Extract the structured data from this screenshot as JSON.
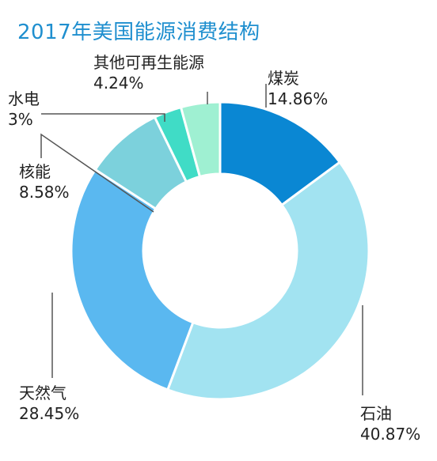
{
  "chart_data": {
    "type": "pie",
    "title": "2017年美国能源消费结构",
    "slices": [
      {
        "name": "煤炭",
        "value": 14.86,
        "label": "14.86%",
        "color": "#0a87d3"
      },
      {
        "name": "石油",
        "value": 40.87,
        "label": "40.87%",
        "color": "#a2e3f1"
      },
      {
        "name": "天然气",
        "value": 28.45,
        "label": "28.45%",
        "color": "#5ab8f0"
      },
      {
        "name": "核能",
        "value": 8.58,
        "label": "8.58%",
        "color": "#7cd1dc"
      },
      {
        "name": "水电",
        "value": 3,
        "label": "3%",
        "color": "#40dcc6"
      },
      {
        "name": "其他可再生能源",
        "value": 4.24,
        "label": "4.24%",
        "color": "#9ff0d2"
      }
    ],
    "hole": true
  }
}
